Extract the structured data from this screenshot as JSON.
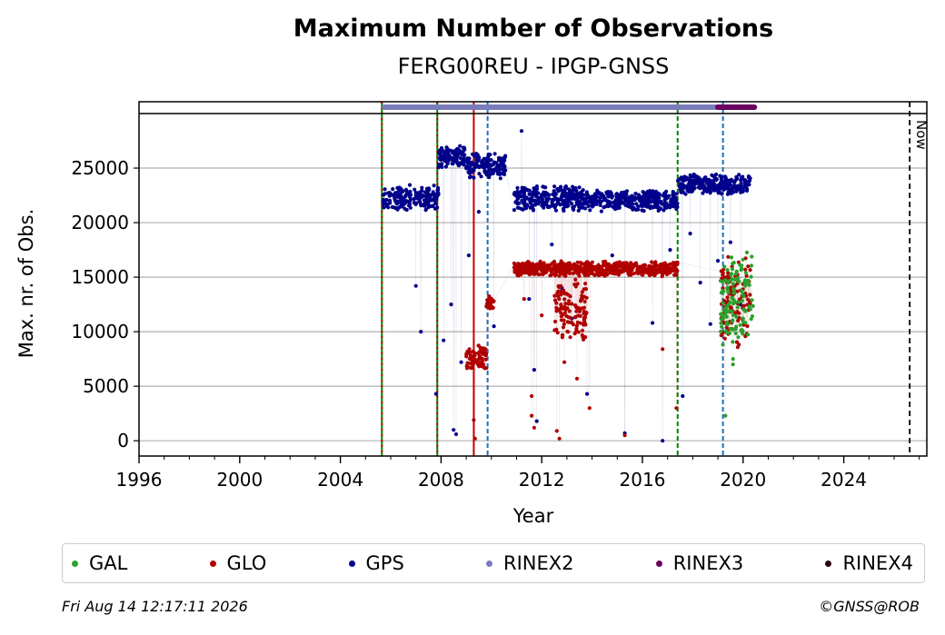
{
  "header": {
    "title": "Maximum Number of Observations",
    "subtitle": "FERG00REU - IPGP-GNSS"
  },
  "footer": {
    "timestamp": "Fri Aug 14 12:17:11 2026",
    "copyright": "©GNSS@ROB"
  },
  "legend": [
    {
      "label": "GAL",
      "color": "#2ca02c"
    },
    {
      "label": "GLO",
      "color": "#b00000"
    },
    {
      "label": "GPS",
      "color": "#00008b"
    },
    {
      "label": "RINEX2",
      "color": "#7b7bbb"
    },
    {
      "label": "RINEX3",
      "color": "#6a005f"
    },
    {
      "label": "RINEX4",
      "color": "#2b0018"
    }
  ],
  "chart_data": {
    "type": "scatter",
    "xlabel": "Year",
    "ylabel": "Max. nr. of Obs.",
    "xlim": [
      1996,
      2027.3
    ],
    "ylim": [
      -1400,
      30000
    ],
    "xticks": [
      1996,
      2000,
      2004,
      2008,
      2012,
      2016,
      2020,
      2024
    ],
    "yticks": [
      0,
      5000,
      10000,
      15000,
      20000,
      25000
    ],
    "grid": "horizontal",
    "legend_position": "bottom",
    "now_label": "Now",
    "now_x": 2026.62,
    "vlines": [
      {
        "x": 2005.65,
        "style": "green-red"
      },
      {
        "x": 2007.85,
        "style": "green-red"
      },
      {
        "x": 2009.3,
        "style": "red"
      },
      {
        "x": 2009.85,
        "style": "blue-dashed"
      },
      {
        "x": 2017.4,
        "style": "green-dashed"
      },
      {
        "x": 2019.2,
        "style": "blue-dashed"
      }
    ],
    "rinex_bars": [
      {
        "name": "RINEX2",
        "start": 2005.75,
        "end": 2019.0
      },
      {
        "name": "RINEX3",
        "start": 2019.0,
        "end": 2020.45
      }
    ],
    "series": [
      {
        "name": "GPS",
        "clusters": [
          {
            "x": [
              2005.7,
              2007.9
            ],
            "y": [
              21000,
              23500
            ]
          },
          {
            "x": [
              2007.9,
              2009.0
            ],
            "y": [
              25000,
              27200
            ]
          },
          {
            "x": [
              2009.0,
              2010.6
            ],
            "y": [
              24000,
              26500
            ]
          },
          {
            "x": [
              2010.9,
              2012.0
            ],
            "y": [
              21000,
              23500
            ]
          },
          {
            "x": [
              2012.0,
              2013.7
            ],
            "y": [
              21000,
              23500
            ]
          },
          {
            "x": [
              2013.7,
              2017.4
            ],
            "y": [
              21000,
              23000
            ]
          },
          {
            "x": [
              2017.4,
              2020.3
            ],
            "y": [
              22500,
              24500
            ]
          }
        ],
        "outliers": [
          [
            2007.0,
            14200
          ],
          [
            2007.2,
            10000
          ],
          [
            2007.8,
            4300
          ],
          [
            2008.1,
            9200
          ],
          [
            2008.4,
            12500
          ],
          [
            2008.5,
            1000
          ],
          [
            2008.6,
            600
          ],
          [
            2008.8,
            7200
          ],
          [
            2009.1,
            17000
          ],
          [
            2009.5,
            21000
          ],
          [
            2010.1,
            10500
          ],
          [
            2011.2,
            28400
          ],
          [
            2011.5,
            13000
          ],
          [
            2011.7,
            6500
          ],
          [
            2011.8,
            1800
          ],
          [
            2012.4,
            18000
          ],
          [
            2012.8,
            14000
          ],
          [
            2013.2,
            11200
          ],
          [
            2013.8,
            4300
          ],
          [
            2014.8,
            17000
          ],
          [
            2015.3,
            700
          ],
          [
            2016.4,
            10800
          ],
          [
            2016.8,
            0
          ],
          [
            2017.1,
            17500
          ],
          [
            2017.6,
            4100
          ],
          [
            2017.9,
            19000
          ],
          [
            2018.3,
            14500
          ],
          [
            2018.7,
            10700
          ],
          [
            2019.0,
            16500
          ],
          [
            2019.5,
            18200
          ],
          [
            2019.9,
            12500
          ]
        ]
      },
      {
        "name": "GLO",
        "clusters": [
          {
            "x": [
              2009.0,
              2009.8
            ],
            "y": [
              6500,
              8800
            ]
          },
          {
            "x": [
              2009.8,
              2010.1
            ],
            "y": [
              12000,
              13500
            ]
          },
          {
            "x": [
              2010.9,
              2017.4
            ],
            "y": [
              15000,
              16500
            ]
          },
          {
            "x": [
              2012.5,
              2013.8
            ],
            "y": [
              9000,
              15000
            ]
          },
          {
            "x": [
              2019.1,
              2020.3
            ],
            "y": [
              8500,
              17500
            ]
          }
        ],
        "outliers": [
          [
            2009.3,
            1900
          ],
          [
            2009.35,
            200
          ],
          [
            2011.6,
            2300
          ],
          [
            2011.7,
            1200
          ],
          [
            2012.0,
            11500
          ],
          [
            2012.6,
            900
          ],
          [
            2012.7,
            200
          ],
          [
            2013.9,
            3000
          ],
          [
            2015.3,
            500
          ],
          [
            2016.8,
            8400
          ],
          [
            2017.35,
            3000
          ],
          [
            2011.3,
            13000
          ],
          [
            2011.6,
            4100
          ],
          [
            2012.9,
            7200
          ],
          [
            2013.4,
            5700
          ]
        ]
      },
      {
        "name": "GAL",
        "clusters": [
          {
            "x": [
              2019.1,
              2020.4
            ],
            "y": [
              8500,
              17500
            ]
          }
        ],
        "outliers": [
          [
            2019.3,
            2300
          ],
          [
            2019.6,
            7000
          ],
          [
            2019.6,
            7500
          ],
          [
            2019.2,
            8800
          ]
        ]
      }
    ]
  }
}
